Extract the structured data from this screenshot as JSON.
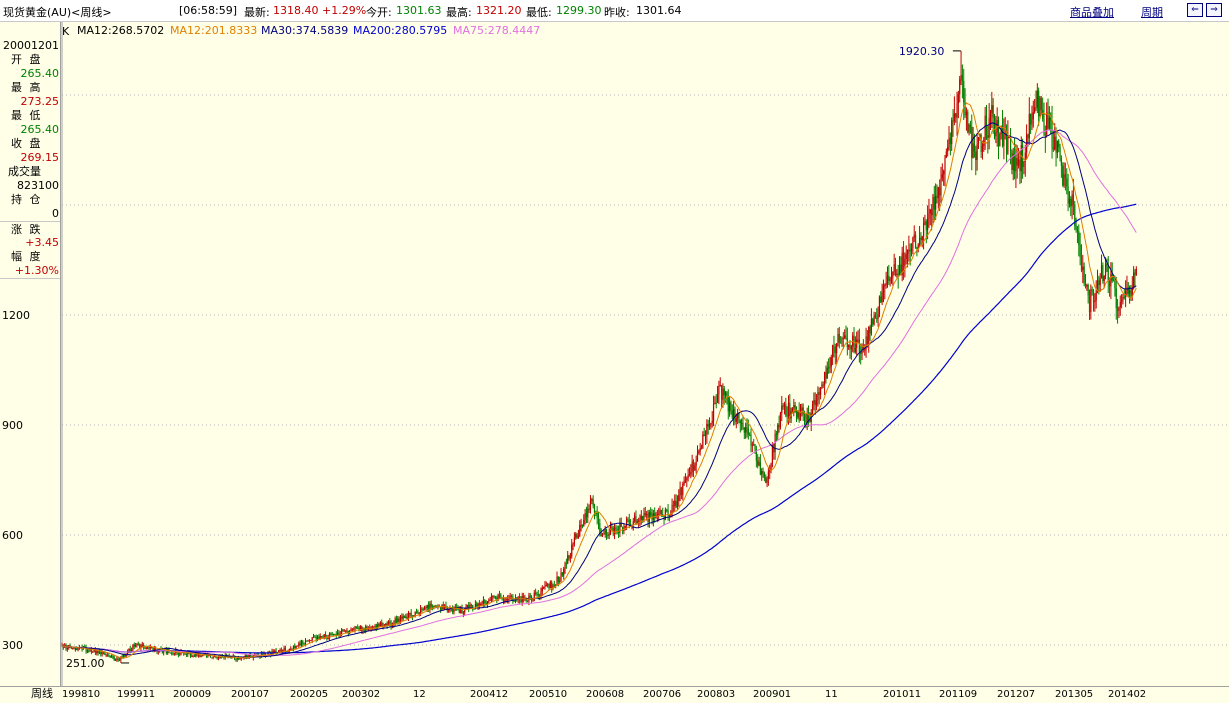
{
  "header": {
    "symbol": "现货黄金(AU)<周线>",
    "time": "[06:58:59]",
    "latest_label": "最新:",
    "latest_value": "1318.40",
    "change_pct": "+1.29%",
    "open_label": "今开:",
    "open_value": "1301.63",
    "high_label": "最高:",
    "high_value": "1321.20",
    "low_label": "最低:",
    "low_value": "1299.30",
    "prev_label": "昨收:",
    "prev_value": "1301.64",
    "overlay_link": "商品叠加",
    "period_link": "周期",
    "btn_prev": "⇐",
    "btn_next": "⇒"
  },
  "info_panel": {
    "date": "20001201",
    "open_label": "开 盘",
    "open": "265.40",
    "high_label": "最 高",
    "high": "273.25",
    "low_label": "最 低",
    "low": "265.40",
    "close_label": "收 盘",
    "close": "269.15",
    "volume_label": "成交量",
    "volume": "823100",
    "oi_label": "持 仓",
    "oi": "0",
    "change_label": "涨 跌",
    "change": "+3.45",
    "amp_label": "幅 度",
    "amp": "+1.30%"
  },
  "legend": {
    "k": "K",
    "ma12a": "MA12:268.5702",
    "ma12b": "MA12:201.8333",
    "ma30": "MA30:374.5839",
    "ma200": "MA200:280.5795",
    "ma75": "MA75:278.4447"
  },
  "colors": {
    "up": "#C00000",
    "down": "#008000",
    "ma12a": "#000000",
    "ma12b": "#E08000",
    "ma30": "#000080",
    "ma200": "#0000D0",
    "ma75": "#E070E0",
    "grid": "#B0B0B0"
  },
  "chart_data": {
    "type": "candlestick",
    "period": "weekly",
    "ylim": [
      230,
      1960
    ],
    "yticks": [
      300,
      600,
      900,
      1200
    ],
    "xticks": [
      "199810",
      "199911",
      "200009",
      "200107",
      "200205",
      "200302",
      "12",
      "200412",
      "200510",
      "200608",
      "200706",
      "200803",
      "200901",
      "11",
      "201011",
      "201109",
      "201207",
      "201305",
      "201402"
    ],
    "xlabel": "周线",
    "annotations": [
      {
        "text": "1920.30",
        "x": 2011.67,
        "y": 1920.3
      },
      {
        "text": "251.00",
        "x": 1999.6,
        "y": 251.0
      }
    ],
    "series": [
      {
        "name": "MA12",
        "color_key": "ma12a"
      },
      {
        "name": "MA12",
        "color_key": "ma12b"
      },
      {
        "name": "MA30",
        "color_key": "ma30"
      },
      {
        "name": "MA200",
        "color_key": "ma200"
      },
      {
        "name": "MA75",
        "color_key": "ma75"
      }
    ],
    "price_path": [
      [
        1998.75,
        298
      ],
      [
        1999.2,
        285
      ],
      [
        1999.55,
        258
      ],
      [
        1999.8,
        300
      ],
      [
        2000.0,
        290
      ],
      [
        2000.5,
        278
      ],
      [
        2001.0,
        266
      ],
      [
        2001.5,
        268
      ],
      [
        2002.0,
        290
      ],
      [
        2002.4,
        318
      ],
      [
        2003.0,
        345
      ],
      [
        2003.5,
        360
      ],
      [
        2004.0,
        405
      ],
      [
        2004.5,
        395
      ],
      [
        2005.0,
        428
      ],
      [
        2005.5,
        428
      ],
      [
        2005.9,
        480
      ],
      [
        2006.37,
        700
      ],
      [
        2006.5,
        600
      ],
      [
        2007.0,
        640
      ],
      [
        2007.5,
        660
      ],
      [
        2007.9,
        820
      ],
      [
        2008.2,
        990
      ],
      [
        2008.6,
        880
      ],
      [
        2008.85,
        740
      ],
      [
        2009.1,
        940
      ],
      [
        2009.5,
        930
      ],
      [
        2009.9,
        1130
      ],
      [
        2010.3,
        1110
      ],
      [
        2010.5,
        1240
      ],
      [
        2010.9,
        1370
      ],
      [
        2011.3,
        1500
      ],
      [
        2011.67,
        1840
      ],
      [
        2011.85,
        1640
      ],
      [
        2012.1,
        1740
      ],
      [
        2012.5,
        1600
      ],
      [
        2012.75,
        1780
      ],
      [
        2013.0,
        1680
      ],
      [
        2013.3,
        1480
      ],
      [
        2013.5,
        1230
      ],
      [
        2013.75,
        1330
      ],
      [
        2013.95,
        1220
      ],
      [
        2014.1,
        1260
      ],
      [
        2014.2,
        1318
      ]
    ]
  }
}
